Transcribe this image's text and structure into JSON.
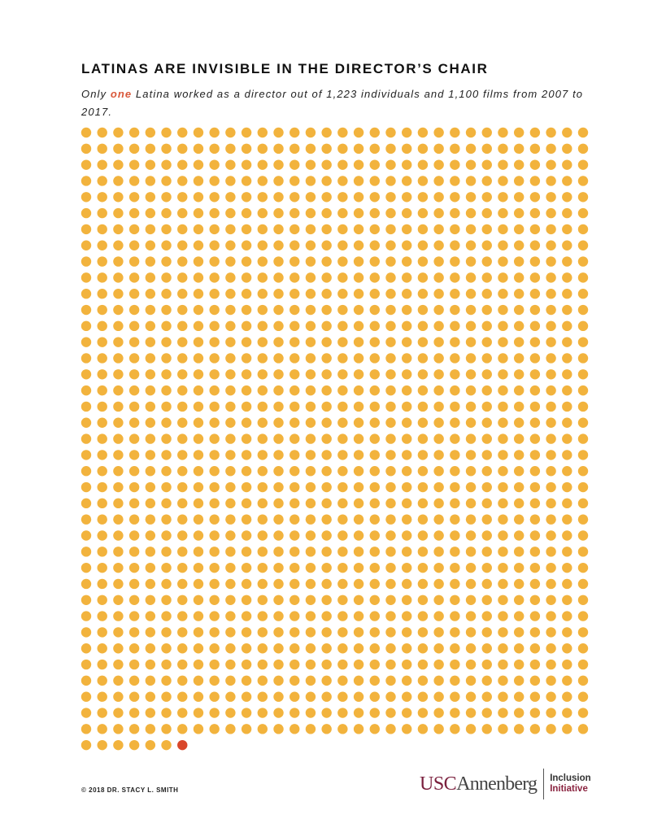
{
  "header": {
    "title": "LATINAS ARE INVISIBLE IN THE DIRECTOR’S CHAIR",
    "subtitle_before": "Only ",
    "subtitle_highlight": "one",
    "subtitle_after": " Latina worked as a director out of 1,223 individuals and 1,100 films from 2007 to 2017."
  },
  "chart_data": {
    "type": "unit-dot",
    "total_units": 1223,
    "columns": 32,
    "highlighted_units": 1,
    "highlighted_position": "last",
    "colors": {
      "default": "#f2b33d",
      "highlight": "#d9472b"
    },
    "legend": "none",
    "grid": false
  },
  "footer": {
    "copyright": "© 2018 DR. STACY L. SMITH",
    "logo_usc": "USC",
    "logo_annenberg": "Annenberg",
    "logo_line1": "Inclusion",
    "logo_line2": "Initiative"
  }
}
